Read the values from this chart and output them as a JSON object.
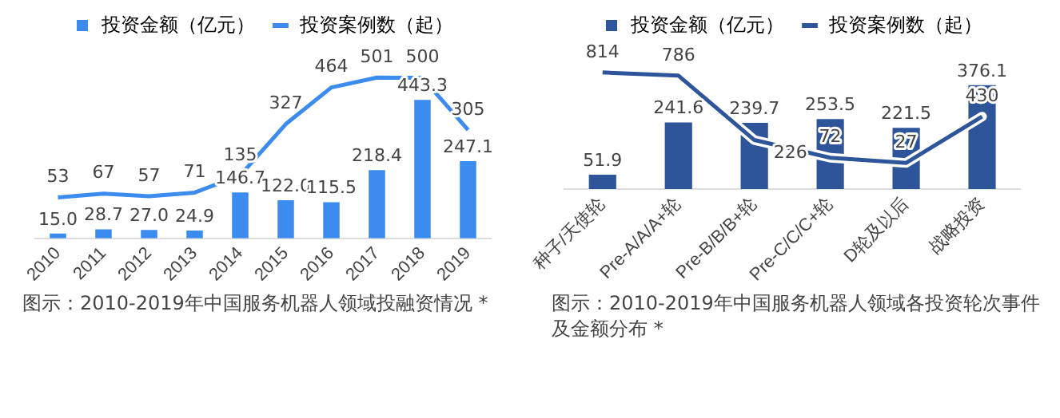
{
  "chart_data": [
    {
      "type": "bar",
      "categories": [
        "2010",
        "2011",
        "2012",
        "2013",
        "2014",
        "2015",
        "2016",
        "2017",
        "2018",
        "2019"
      ],
      "series": [
        {
          "name": "投资金额（亿元）",
          "color": "#3c8cf0",
          "values": [
            15.0,
            28.7,
            27.0,
            24.9,
            146.7,
            122.0,
            115.5,
            218.4,
            443.3,
            247.1
          ],
          "value_labels": [
            "15.0",
            "28.7",
            "27.0",
            "24.9",
            "146.7",
            "122.0",
            "115.5",
            "218.4",
            "443.3",
            "247.1"
          ]
        },
        {
          "name": "投资案例数（起）",
          "type": "line",
          "axis": "y2",
          "color": "#3c8cf0",
          "values": [
            53,
            67,
            57,
            71,
            135,
            327,
            464,
            501,
            500,
            305
          ]
        }
      ],
      "data_labels": true,
      "legend": "top",
      "tick_labels": "x",
      "grid": false,
      "annotations": [
        "图示：2010-2019年中国服务机器人领域投融资情况 *"
      ]
    },
    {
      "type": "bar",
      "categories": [
        "种子/天使轮",
        "Pre-A/A/A+轮",
        "Pre-B/B/B+轮",
        "Pre-C/C/C+轮",
        "D轮及以后",
        "战略投资"
      ],
      "series": [
        {
          "name": "投资金额（亿元）",
          "color": "#2e559a",
          "values": [
            51.9,
            241.6,
            239.7,
            253.5,
            221.5,
            376.1
          ],
          "value_labels": [
            "51.9",
            "241.6",
            "239.7",
            "253.5",
            "221.5",
            "376.1"
          ]
        },
        {
          "name": "投资案例数（起）",
          "type": "line",
          "axis": "y2",
          "color": "#2e559a",
          "values": [
            814,
            786,
            226,
            72,
            27,
            430
          ]
        }
      ],
      "data_labels": true,
      "legend": "top",
      "tick_labels": "x",
      "grid": false,
      "annotations": [
        "图示：2010-2019年中国服务机器人领域各投资轮次事件及金额分布 *"
      ]
    }
  ]
}
